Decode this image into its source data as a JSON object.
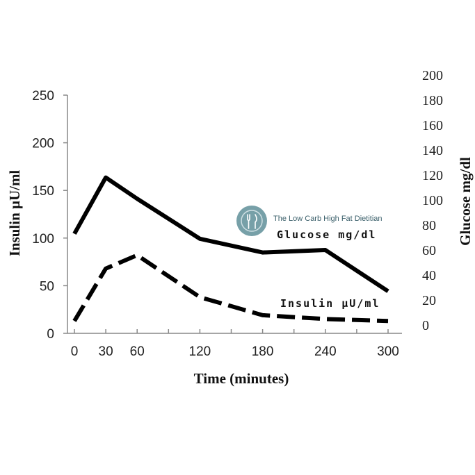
{
  "chart_data": {
    "type": "line",
    "x": [
      0,
      30,
      60,
      120,
      180,
      240,
      300
    ],
    "x_ticks": [
      "0",
      "30",
      "60",
      "120",
      "180",
      "240",
      "300"
    ],
    "xlabel": "Time (minutes)",
    "ylabel_left": "Insulin μU/ml",
    "ylabel_right": "Glucose mg/dl",
    "ylim_left": [
      0,
      250
    ],
    "ylim_right": [
      0,
      200
    ],
    "y_ticks_left": [
      "0",
      "50",
      "100",
      "150",
      "200",
      "250"
    ],
    "y_ticks_right": [
      "0",
      "20",
      "40",
      "60",
      "80",
      "100",
      "120",
      "140",
      "160",
      "180",
      "200"
    ],
    "series": [
      {
        "name": "Glucose mg/dl",
        "axis": "right",
        "style": "solid",
        "x": [
          0,
          30,
          60,
          120,
          180,
          240,
          300
        ],
        "values": [
          73,
          118,
          101,
          69,
          58,
          60,
          27
        ]
      },
      {
        "name": "Insulin μU/ml",
        "axis": "left",
        "style": "dashed",
        "x": [
          0,
          30,
          60,
          120,
          180,
          240,
          300
        ],
        "values": [
          13,
          68,
          82,
          38,
          19,
          15,
          13
        ]
      }
    ],
    "watermark": "The Low Carb High Fat Dietitian",
    "grid": false,
    "colors": {
      "line": "#000000",
      "watermark": "#5f8f99"
    }
  }
}
